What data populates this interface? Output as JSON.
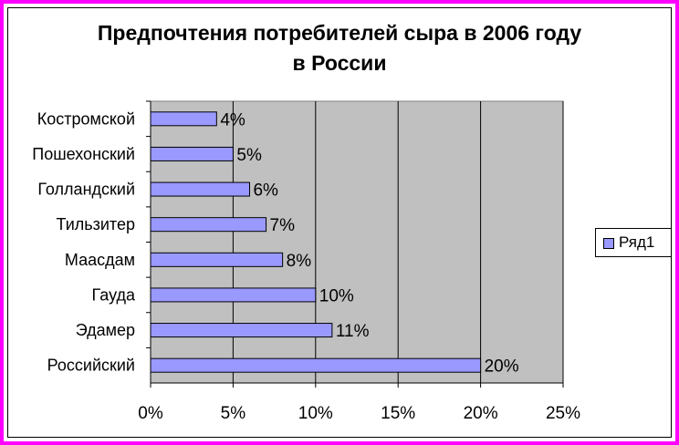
{
  "chart_data": {
    "type": "bar",
    "orientation": "horizontal",
    "title": [
      "Предпочтения потребителей сыра в 2006 году",
      "в России"
    ],
    "categories": [
      "Костромской",
      "Пошехонский",
      "Голландский",
      "Тильзитер",
      "Маасдам",
      "Гауда",
      "Эдамер",
      "Российский"
    ],
    "series": [
      {
        "name": "Ряд1",
        "values": [
          4,
          5,
          6,
          7,
          8,
          10,
          11,
          20
        ]
      }
    ],
    "data_labels": [
      "4%",
      "5%",
      "6%",
      "7%",
      "8%",
      "10%",
      "11%",
      "20%"
    ],
    "x_ticks": [
      0,
      5,
      10,
      15,
      20,
      25
    ],
    "x_tick_labels": [
      "0%",
      "5%",
      "10%",
      "15%",
      "20%",
      "25%"
    ],
    "xlim": [
      0,
      25
    ],
    "grid": "vertical",
    "legend": "right",
    "colors": {
      "bar": "#9999ff",
      "plot_background": "#c0c0c0",
      "border": "#ff00ff"
    }
  }
}
